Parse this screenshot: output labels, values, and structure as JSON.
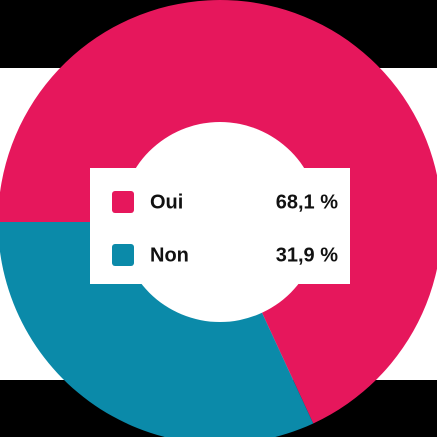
{
  "chart_data": {
    "type": "donut",
    "categories": [
      "Oui",
      "Non"
    ],
    "values": [
      68.1,
      31.9
    ],
    "value_labels": [
      "68,1 %",
      "31,9 %"
    ],
    "colors": [
      "#e6175c",
      "#0b8aa9"
    ],
    "legend": "center"
  }
}
